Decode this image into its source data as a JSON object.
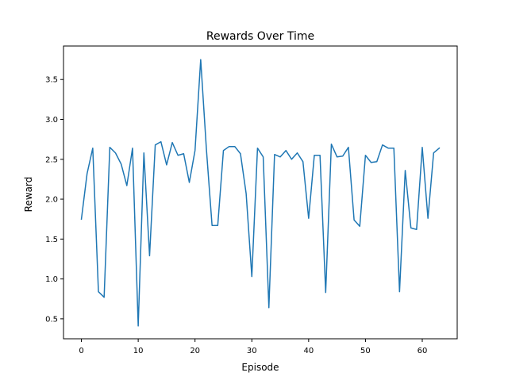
{
  "chart_data": {
    "type": "line",
    "title": "Rewards Over Time",
    "xlabel": "Episode",
    "ylabel": "Reward",
    "xlim": [
      -3.15,
      66.15
    ],
    "ylim": [
      0.25,
      3.92
    ],
    "xticks": [
      0,
      10,
      20,
      30,
      40,
      50,
      60
    ],
    "xtick_labels": [
      "0",
      "10",
      "20",
      "30",
      "40",
      "50",
      "60"
    ],
    "yticks": [
      0.5,
      1.0,
      1.5,
      2.0,
      2.5,
      3.0,
      3.5
    ],
    "ytick_labels": [
      "0.5",
      "1.0",
      "1.5",
      "2.0",
      "2.5",
      "3.0",
      "3.5"
    ],
    "grid": false,
    "legend": "none",
    "series": [
      {
        "color": "#1f77b4",
        "x": [
          0,
          1,
          2,
          3,
          4,
          5,
          6,
          7,
          8,
          9,
          10,
          11,
          12,
          13,
          14,
          15,
          16,
          17,
          18,
          19,
          20,
          21,
          22,
          23,
          24,
          25,
          26,
          27,
          28,
          29,
          30,
          31,
          32,
          33,
          34,
          35,
          36,
          37,
          38,
          39,
          40,
          41,
          42,
          43,
          44,
          45,
          46,
          47,
          48,
          49,
          50,
          51,
          52,
          53,
          54,
          55,
          56,
          57,
          58,
          59,
          60,
          61,
          62,
          63
        ],
        "y": [
          1.75,
          2.32,
          2.64,
          0.84,
          0.77,
          2.65,
          2.58,
          2.44,
          2.17,
          2.64,
          0.41,
          2.58,
          1.29,
          2.68,
          2.72,
          2.43,
          2.71,
          2.55,
          2.57,
          2.21,
          2.61,
          3.75,
          2.63,
          1.67,
          1.67,
          2.61,
          2.66,
          2.66,
          2.57,
          2.07,
          1.03,
          2.64,
          2.53,
          0.64,
          2.56,
          2.53,
          2.61,
          2.5,
          2.58,
          2.47,
          1.76,
          2.55,
          2.55,
          0.83,
          2.69,
          2.53,
          2.54,
          2.65,
          1.74,
          1.66,
          2.55,
          2.46,
          2.47,
          2.68,
          2.64,
          2.64,
          0.84,
          2.36,
          1.64,
          1.62,
          2.65,
          1.76,
          2.58,
          2.64
        ]
      }
    ]
  }
}
